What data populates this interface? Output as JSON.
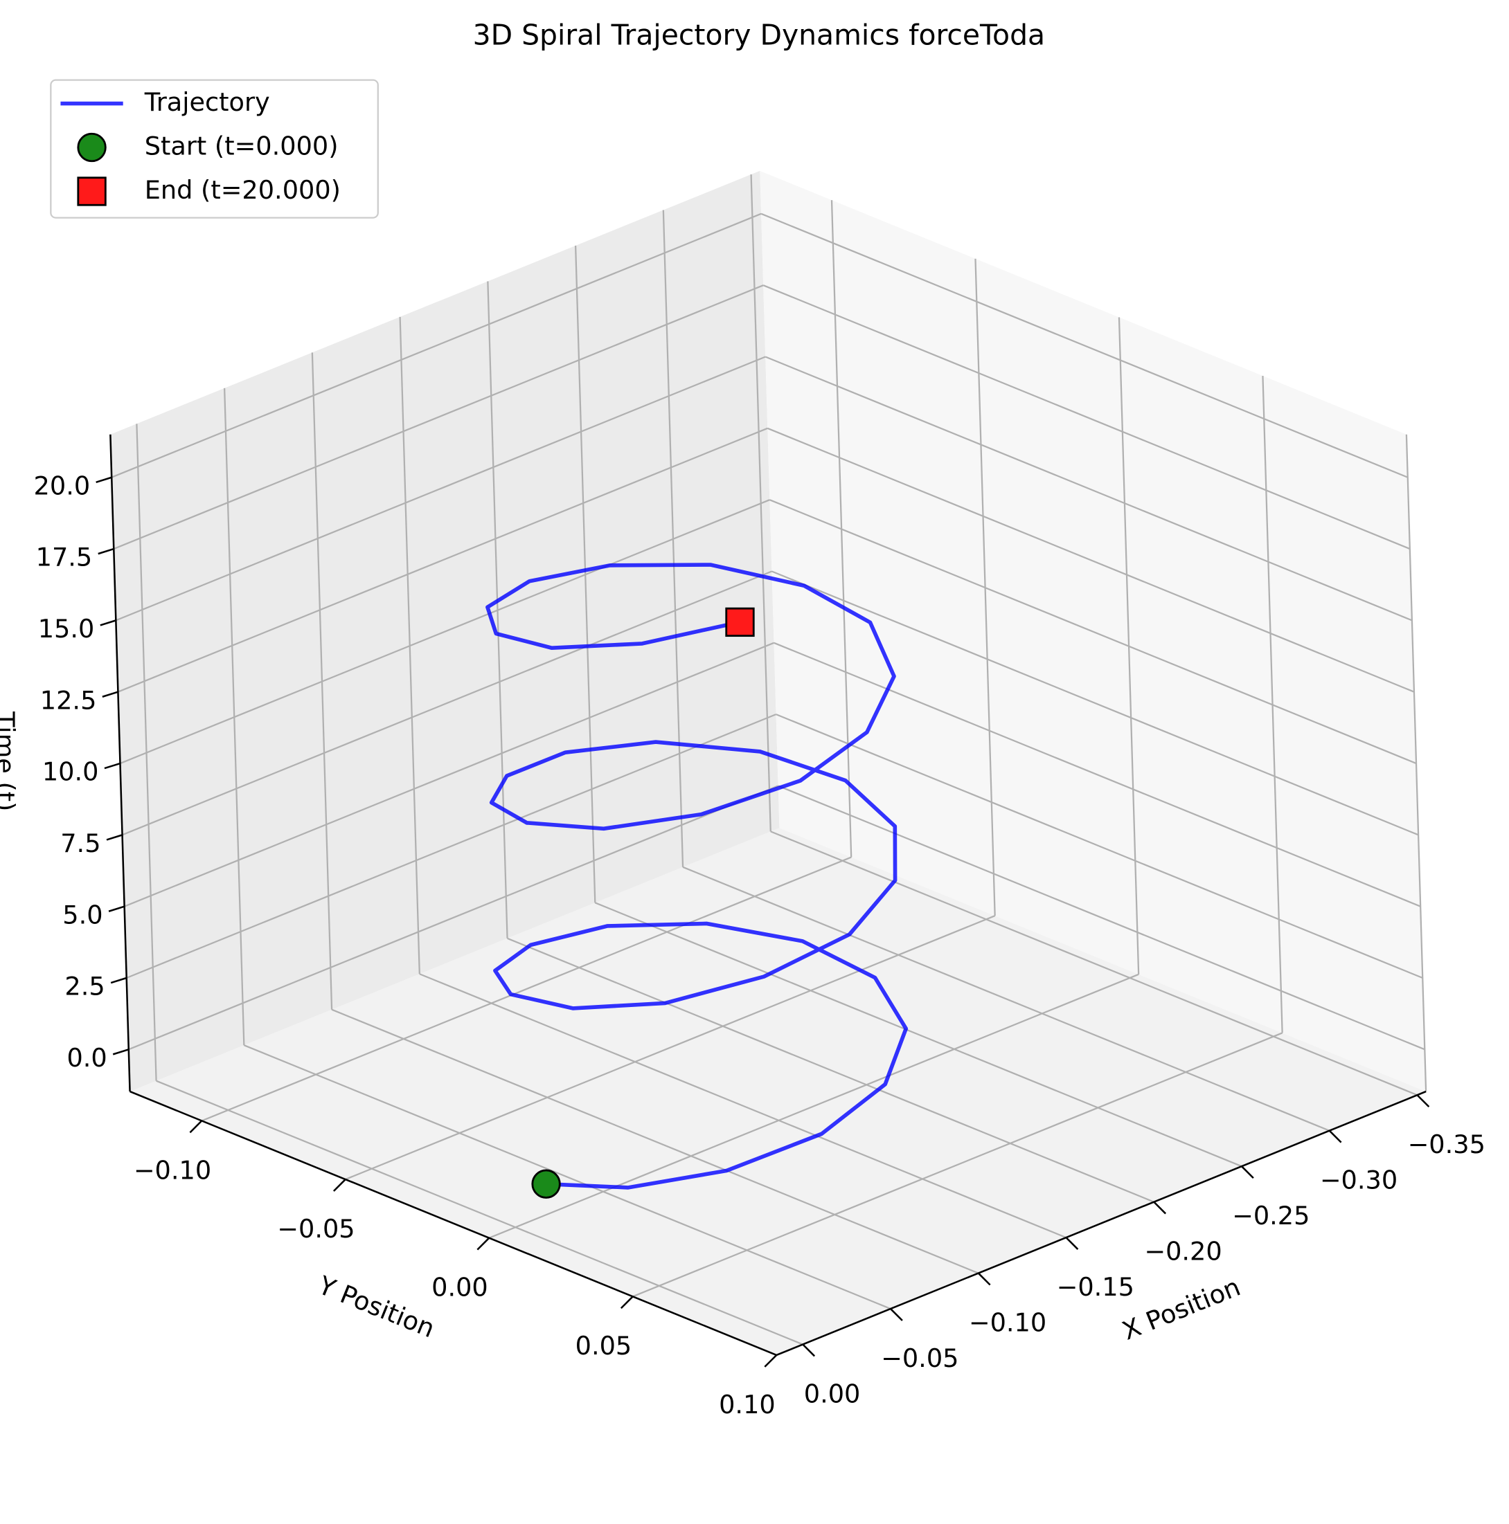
{
  "chart_data": {
    "type": "line3d",
    "title": "3D Spiral Trajectory Dynamics forceToda",
    "xlabel": "X Position",
    "ylabel": "Y Position",
    "zlabel": "Time (t)",
    "xlim": [
      -0.355,
      0.015
    ],
    "ylim": [
      -0.125,
      0.1
    ],
    "zlim": [
      -1.47,
      21.5
    ],
    "xticks": [
      {
        "value": 0.0,
        "label": "0.00"
      },
      {
        "value": -0.05,
        "label": "−0.05"
      },
      {
        "value": -0.1,
        "label": "−0.10"
      },
      {
        "value": -0.15,
        "label": "−0.15"
      },
      {
        "value": -0.2,
        "label": "−0.20"
      },
      {
        "value": -0.25,
        "label": "−0.25"
      },
      {
        "value": -0.3,
        "label": "−0.30"
      },
      {
        "value": -0.35,
        "label": "−0.35"
      }
    ],
    "yticks": [
      {
        "value": -0.1,
        "label": "−0.10"
      },
      {
        "value": -0.05,
        "label": "−0.05"
      },
      {
        "value": 0.0,
        "label": "0.00"
      },
      {
        "value": 0.05,
        "label": "0.05"
      },
      {
        "value": 0.1,
        "label": "0.10"
      }
    ],
    "zticks": [
      {
        "value": 0,
        "label": "0.0"
      },
      {
        "value": 2.5,
        "label": "2.5"
      },
      {
        "value": 5,
        "label": "5.0"
      },
      {
        "value": 7.5,
        "label": "7.5"
      },
      {
        "value": 10,
        "label": "10.0"
      },
      {
        "value": 12.5,
        "label": "12.5"
      },
      {
        "value": 15,
        "label": "15.0"
      },
      {
        "value": 17.5,
        "label": "17.5"
      },
      {
        "value": 20,
        "label": "20.0"
      }
    ],
    "grid": true,
    "legend": "upper left",
    "series": [
      {
        "name": "Trajectory",
        "color": "#0000ff",
        "x": [
          -0.01,
          -0.021,
          -0.051,
          -0.094,
          -0.137,
          -0.172,
          -0.189,
          -0.184,
          -0.159,
          -0.119,
          -0.074,
          -0.036,
          -0.014,
          -0.012,
          -0.032,
          -0.069,
          -0.113,
          -0.154,
          -0.182,
          -0.19,
          -0.176,
          -0.143,
          -0.1,
          -0.057,
          -0.024,
          -0.01,
          -0.018,
          -0.046,
          -0.088,
          -0.131,
          -0.168,
          -0.189,
          -0.186,
          -0.164,
          -0.125,
          -0.081,
          -0.041,
          -0.015,
          -0.011,
          -0.03,
          -0.063
        ],
        "y": [
          0.005,
          0.027,
          0.043,
          0.05,
          0.046,
          0.032,
          0.011,
          -0.011,
          -0.029,
          -0.039,
          -0.038,
          -0.027,
          -0.008,
          0.015,
          0.035,
          0.047,
          0.05,
          0.041,
          0.024,
          0.002,
          -0.019,
          -0.035,
          -0.04,
          -0.034,
          -0.019,
          0.002,
          0.024,
          0.041,
          0.05,
          0.047,
          0.034,
          0.013,
          -0.008,
          -0.027,
          -0.038,
          -0.039,
          -0.029,
          -0.01,
          0.012,
          0.032,
          0.046
        ],
        "z": [
          0,
          0.5,
          1,
          1.5,
          2,
          2.5,
          3,
          3.5,
          4,
          4.5,
          5,
          5.5,
          6,
          6.5,
          7,
          7.5,
          8,
          8.5,
          9,
          9.5,
          10,
          10.5,
          11,
          11.5,
          12,
          12.5,
          13,
          13.5,
          14,
          14.5,
          15,
          15.5,
          16,
          16.5,
          17,
          17.5,
          18,
          18.5,
          19,
          19.5,
          20
        ]
      }
    ],
    "markers": [
      {
        "name": "Start (t=0.000)",
        "marker": "circle",
        "color": "#1a8a1a",
        "x": -0.01,
        "y": 0.005,
        "z": 0
      },
      {
        "name": "End (t=20.000)",
        "marker": "square",
        "color": "#ff1a1a",
        "x": -0.063,
        "y": 0.046,
        "z": 20
      }
    ]
  }
}
